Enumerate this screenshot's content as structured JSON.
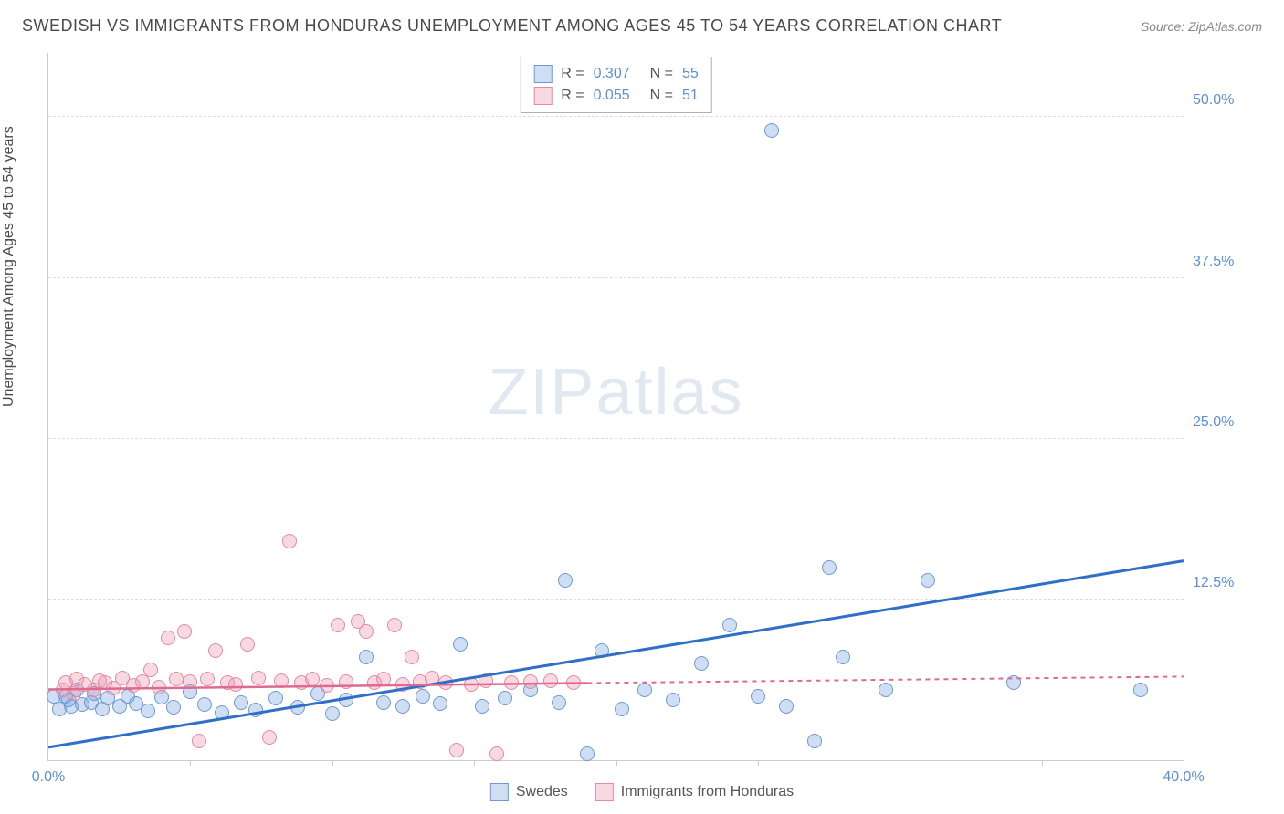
{
  "title": "SWEDISH VS IMMIGRANTS FROM HONDURAS UNEMPLOYMENT AMONG AGES 45 TO 54 YEARS CORRELATION CHART",
  "source": "Source: ZipAtlas.com",
  "ylabel": "Unemployment Among Ages 45 to 54 years",
  "watermark_a": "ZIP",
  "watermark_b": "atlas",
  "chart": {
    "type": "scatter",
    "xlim": [
      0,
      40
    ],
    "ylim": [
      0,
      55
    ],
    "yticks": [
      {
        "v": 12.5,
        "label": "12.5%"
      },
      {
        "v": 25.0,
        "label": "25.0%"
      },
      {
        "v": 37.5,
        "label": "37.5%"
      },
      {
        "v": 50.0,
        "label": "50.0%"
      }
    ],
    "xticks_major": [
      0,
      40
    ],
    "xtick_labels": [
      {
        "v": 0,
        "label": "0.0%"
      },
      {
        "v": 40,
        "label": "40.0%"
      }
    ],
    "xticks_minor": [
      5,
      10,
      15,
      20,
      25,
      30,
      35
    ],
    "background_color": "#ffffff",
    "grid_color": "#dddddd",
    "series": [
      {
        "name": "Swedes",
        "fill": "rgba(120,160,220,0.35)",
        "stroke": "#6a9bd8",
        "stats_R": "0.307",
        "stats_N": "55",
        "marker_radius": 8,
        "trend": {
          "x1": 0,
          "y1": 1.0,
          "x2": 40,
          "y2": 15.5,
          "color": "#2f6fc7",
          "width": 3,
          "dash": "",
          "dash2_from": 40
        },
        "points": [
          [
            0.2,
            5.0
          ],
          [
            0.4,
            4.0
          ],
          [
            0.6,
            5.0
          ],
          [
            0.7,
            4.7
          ],
          [
            0.8,
            4.2
          ],
          [
            1.0,
            5.5
          ],
          [
            1.2,
            4.3
          ],
          [
            1.5,
            4.5
          ],
          [
            1.6,
            5.2
          ],
          [
            1.9,
            4.0
          ],
          [
            2.1,
            4.8
          ],
          [
            2.5,
            4.2
          ],
          [
            2.8,
            5.0
          ],
          [
            3.1,
            4.4
          ],
          [
            3.5,
            3.8
          ],
          [
            4.0,
            4.9
          ],
          [
            4.4,
            4.1
          ],
          [
            5.0,
            5.3
          ],
          [
            5.5,
            4.3
          ],
          [
            6.1,
            3.7
          ],
          [
            6.8,
            4.5
          ],
          [
            7.3,
            3.9
          ],
          [
            8.0,
            4.8
          ],
          [
            8.8,
            4.1
          ],
          [
            9.5,
            5.2
          ],
          [
            10.0,
            3.6
          ],
          [
            10.5,
            4.7
          ],
          [
            11.2,
            8.0
          ],
          [
            11.8,
            4.5
          ],
          [
            12.5,
            4.2
          ],
          [
            13.2,
            5.0
          ],
          [
            13.8,
            4.4
          ],
          [
            14.5,
            9.0
          ],
          [
            15.3,
            4.2
          ],
          [
            16.1,
            4.8
          ],
          [
            17.0,
            5.5
          ],
          [
            18.2,
            14.0
          ],
          [
            18.0,
            4.5
          ],
          [
            19.0,
            0.5
          ],
          [
            19.5,
            8.5
          ],
          [
            20.2,
            4.0
          ],
          [
            21.0,
            5.5
          ],
          [
            22.0,
            4.7
          ],
          [
            23.0,
            7.5
          ],
          [
            24.0,
            10.5
          ],
          [
            25.0,
            5.0
          ],
          [
            26.0,
            4.2
          ],
          [
            27.0,
            1.5
          ],
          [
            27.5,
            15.0
          ],
          [
            28.0,
            8.0
          ],
          [
            29.5,
            5.5
          ],
          [
            31.0,
            14.0
          ],
          [
            25.5,
            49.0
          ],
          [
            38.5,
            5.5
          ],
          [
            34.0,
            6.0
          ]
        ]
      },
      {
        "name": "Immigrants from Honduras",
        "fill": "rgba(235,145,170,0.35)",
        "stroke": "#e38aa5",
        "stats_R": "0.055",
        "stats_N": "51",
        "marker_radius": 8,
        "trend": {
          "x1": 0,
          "y1": 5.5,
          "x2": 19,
          "y2": 6.0,
          "color": "#e06a8f",
          "width": 2.5,
          "dash": "",
          "dash2_from": 19,
          "dash2_to": 40,
          "dash2_y1": 6.0,
          "dash2_y2": 6.5
        },
        "points": [
          [
            0.5,
            5.5
          ],
          [
            0.6,
            6.0
          ],
          [
            0.9,
            5.2
          ],
          [
            1.0,
            6.3
          ],
          [
            1.3,
            5.9
          ],
          [
            1.6,
            5.5
          ],
          [
            1.8,
            6.2
          ],
          [
            2.0,
            6.0
          ],
          [
            2.3,
            5.6
          ],
          [
            2.6,
            6.4
          ],
          [
            3.0,
            5.8
          ],
          [
            3.3,
            6.1
          ],
          [
            3.6,
            7.0
          ],
          [
            3.9,
            5.7
          ],
          [
            4.2,
            9.5
          ],
          [
            4.5,
            6.3
          ],
          [
            4.8,
            10.0
          ],
          [
            5.0,
            6.1
          ],
          [
            5.3,
            1.5
          ],
          [
            5.6,
            6.3
          ],
          [
            5.9,
            8.5
          ],
          [
            6.3,
            6.0
          ],
          [
            6.6,
            5.9
          ],
          [
            7.0,
            9.0
          ],
          [
            7.4,
            6.4
          ],
          [
            7.8,
            1.8
          ],
          [
            8.2,
            6.2
          ],
          [
            8.5,
            17.0
          ],
          [
            8.9,
            6.0
          ],
          [
            9.3,
            6.3
          ],
          [
            9.8,
            5.8
          ],
          [
            10.2,
            10.5
          ],
          [
            10.5,
            6.1
          ],
          [
            10.9,
            10.8
          ],
          [
            11.2,
            10.0
          ],
          [
            11.5,
            6.0
          ],
          [
            11.8,
            6.3
          ],
          [
            12.2,
            10.5
          ],
          [
            12.5,
            5.9
          ],
          [
            12.8,
            8.0
          ],
          [
            13.1,
            6.1
          ],
          [
            13.5,
            6.4
          ],
          [
            14.0,
            6.0
          ],
          [
            14.4,
            0.8
          ],
          [
            14.9,
            5.9
          ],
          [
            15.4,
            6.2
          ],
          [
            15.8,
            0.5
          ],
          [
            16.3,
            6.0
          ],
          [
            17.0,
            6.1
          ],
          [
            17.7,
            6.2
          ],
          [
            18.5,
            6.0
          ]
        ]
      }
    ]
  },
  "legend": {
    "series1": "Swedes",
    "series2": "Immigrants from Honduras"
  }
}
